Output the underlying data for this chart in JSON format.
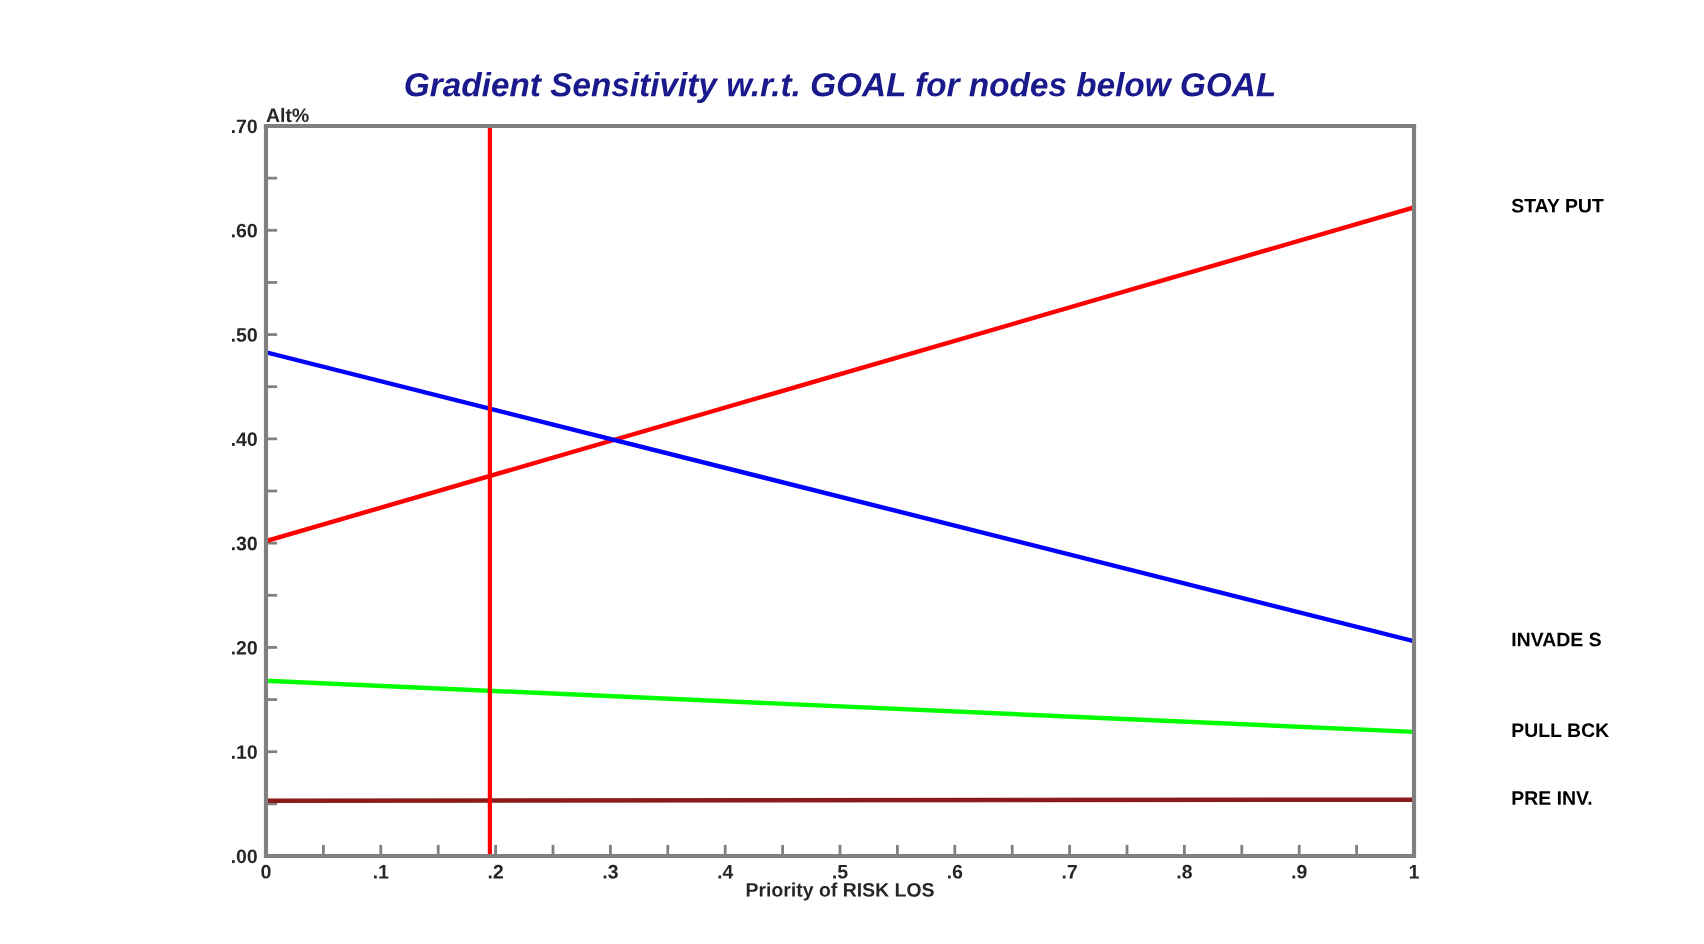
{
  "chart_data": {
    "type": "line",
    "title": "Gradient Sensitivity w.r.t. GOAL for nodes below GOAL",
    "xlabel": "Priority of RISK LOS",
    "ylabel": "Alt%",
    "x": [
      0,
      1
    ],
    "series": [
      {
        "name": "STAY PUT",
        "color": "#ff0000",
        "values": [
          0.302,
          0.622
        ]
      },
      {
        "name": "INVADE S",
        "color": "#0000ff",
        "values": [
          0.483,
          0.206
        ]
      },
      {
        "name": "PULL BCK",
        "color": "#00ff00",
        "values": [
          0.168,
          0.119
        ]
      },
      {
        "name": "PRE INV.",
        "color": "#8b1a1a",
        "values": [
          0.053,
          0.054
        ]
      }
    ],
    "xlim": [
      0,
      1
    ],
    "ylim": [
      0,
      0.7
    ],
    "xticks": [
      {
        "value": 0,
        "label": "0"
      },
      {
        "value": 0.05,
        "label": null
      },
      {
        "value": 0.1,
        "label": ".1"
      },
      {
        "value": 0.15,
        "label": null
      },
      {
        "value": 0.2,
        "label": ".2"
      },
      {
        "value": 0.25,
        "label": null
      },
      {
        "value": 0.3,
        "label": ".3"
      },
      {
        "value": 0.35,
        "label": null
      },
      {
        "value": 0.4,
        "label": ".4"
      },
      {
        "value": 0.45,
        "label": null
      },
      {
        "value": 0.5,
        "label": ".5"
      },
      {
        "value": 0.55,
        "label": null
      },
      {
        "value": 0.6,
        "label": ".6"
      },
      {
        "value": 0.65,
        "label": null
      },
      {
        "value": 0.7,
        "label": ".7"
      },
      {
        "value": 0.75,
        "label": null
      },
      {
        "value": 0.8,
        "label": ".8"
      },
      {
        "value": 0.85,
        "label": null
      },
      {
        "value": 0.9,
        "label": ".9"
      },
      {
        "value": 0.95,
        "label": null
      },
      {
        "value": 1,
        "label": "1"
      }
    ],
    "yticks": [
      {
        "value": 0,
        "label": ".00"
      },
      {
        "value": 0.05,
        "label": null
      },
      {
        "value": 0.1,
        "label": ".10"
      },
      {
        "value": 0.15,
        "label": null
      },
      {
        "value": 0.2,
        "label": ".20"
      },
      {
        "value": 0.25,
        "label": null
      },
      {
        "value": 0.3,
        "label": ".30"
      },
      {
        "value": 0.35,
        "label": null
      },
      {
        "value": 0.4,
        "label": ".40"
      },
      {
        "value": 0.45,
        "label": null
      },
      {
        "value": 0.5,
        "label": ".50"
      },
      {
        "value": 0.55,
        "label": null
      },
      {
        "value": 0.6,
        "label": ".60"
      },
      {
        "value": 0.65,
        "label": null
      },
      {
        "value": 0.7,
        "label": ".70"
      }
    ],
    "ref_lines": [
      {
        "axis": "x",
        "value": 0.195,
        "color": "#ff0000"
      }
    ],
    "grid": false,
    "legend": false,
    "marker": "none",
    "line_style": "solid"
  }
}
